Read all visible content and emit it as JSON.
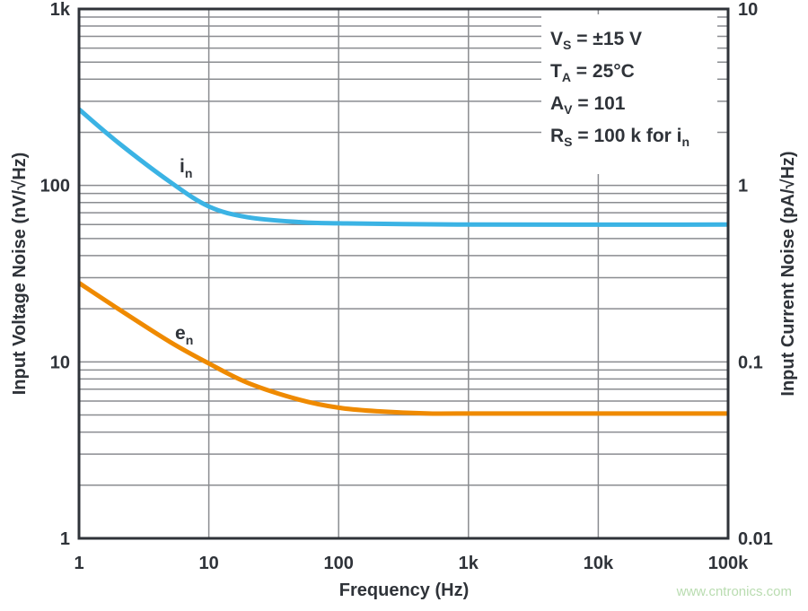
{
  "chart_data": {
    "type": "line",
    "xlabel": "Frequency (Hz)",
    "ylabel_left": "Input Voltage Noise (nV/√Hz)",
    "ylabel_right": "Input Current Noise (pA/√Hz)",
    "x_scale": "log",
    "y_scale": "log",
    "xlim": [
      1,
      100000
    ],
    "ylim_left": [
      1,
      1000
    ],
    "ylim_right": [
      0.01,
      10
    ],
    "x_ticks": [
      "1",
      "10",
      "100",
      "1k",
      "10k",
      "100k"
    ],
    "y_ticks_left": [
      "1",
      "10",
      "100",
      "1k"
    ],
    "y_ticks_right": [
      "0.01",
      "0.1",
      "1",
      "10"
    ],
    "grid": true,
    "conditions": [
      {
        "main": "V",
        "sub": "S",
        "rest": " = ±15 V"
      },
      {
        "main": "T",
        "sub": "A",
        "rest": " = 25°C"
      },
      {
        "main": "A",
        "sub": "V",
        "rest": " = 101"
      },
      {
        "main": "R",
        "sub": "S",
        "rest": " = 100 k for i",
        "tail_sub": "n"
      }
    ],
    "series": [
      {
        "name": "i",
        "sub": "n",
        "axis": "right",
        "color": "#3bb3e4",
        "x": [
          1,
          2,
          5,
          10,
          20,
          50,
          100,
          1000,
          100000
        ],
        "y": [
          2.7,
          1.75,
          1.05,
          0.76,
          0.66,
          0.62,
          0.61,
          0.6,
          0.6
        ]
      },
      {
        "name": "e",
        "sub": "n",
        "axis": "left",
        "color": "#ef8a00",
        "x": [
          1,
          2,
          5,
          10,
          20,
          50,
          100,
          200,
          500,
          1000,
          100000
        ],
        "y": [
          28,
          20,
          13,
          9.8,
          7.6,
          6.1,
          5.5,
          5.25,
          5.1,
          5.1,
          5.1
        ]
      }
    ]
  },
  "watermark": "www.cntronics.com"
}
